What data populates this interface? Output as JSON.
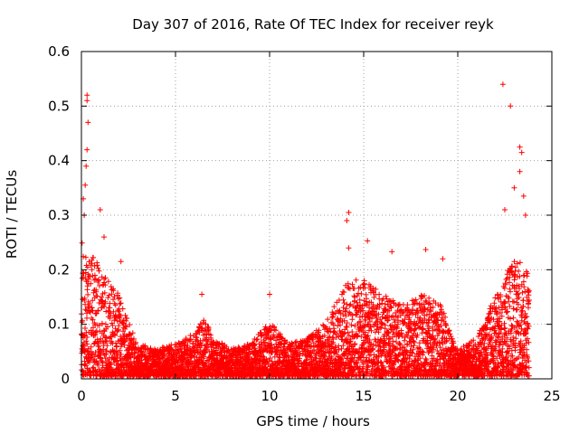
{
  "chart_data": {
    "type": "scatter",
    "title": "Day 307 of 2016, Rate Of TEC Index for receiver reyk",
    "xlabel": "GPS time / hours",
    "ylabel": "ROTI / TECUs",
    "xlim": [
      0,
      25
    ],
    "ylim": [
      0,
      0.6
    ],
    "xticks": [
      0,
      5,
      10,
      15,
      20,
      25
    ],
    "yticks": [
      0,
      0.1,
      0.2,
      0.3,
      0.4,
      0.5,
      0.6
    ],
    "xtick_labels": [
      "0",
      "5",
      "10",
      "15",
      "20",
      "25"
    ],
    "ytick_labels": [
      "0",
      "0.1",
      "0.2",
      "0.3",
      "0.4",
      "0.5",
      "0.6"
    ],
    "grid": true,
    "marker": "+",
    "series": [
      {
        "name": "ROTI",
        "color": "#ff0000",
        "data_range_hours": [
          0,
          23.8
        ],
        "notable_points": [
          {
            "x": 0.3,
            "y": 0.52
          },
          {
            "x": 0.3,
            "y": 0.51
          },
          {
            "x": 0.35,
            "y": 0.47
          },
          {
            "x": 0.3,
            "y": 0.42
          },
          {
            "x": 0.25,
            "y": 0.39
          },
          {
            "x": 0.2,
            "y": 0.355
          },
          {
            "x": 0.1,
            "y": 0.33
          },
          {
            "x": 0.15,
            "y": 0.3
          },
          {
            "x": 1.0,
            "y": 0.31
          },
          {
            "x": 1.2,
            "y": 0.26
          },
          {
            "x": 2.1,
            "y": 0.215
          },
          {
            "x": 6.4,
            "y": 0.155
          },
          {
            "x": 10.0,
            "y": 0.155
          },
          {
            "x": 14.2,
            "y": 0.305
          },
          {
            "x": 14.1,
            "y": 0.29
          },
          {
            "x": 14.2,
            "y": 0.24
          },
          {
            "x": 15.2,
            "y": 0.253
          },
          {
            "x": 16.5,
            "y": 0.233
          },
          {
            "x": 18.3,
            "y": 0.237
          },
          {
            "x": 19.2,
            "y": 0.22
          },
          {
            "x": 22.4,
            "y": 0.54
          },
          {
            "x": 22.8,
            "y": 0.5
          },
          {
            "x": 23.3,
            "y": 0.425
          },
          {
            "x": 23.4,
            "y": 0.415
          },
          {
            "x": 23.3,
            "y": 0.38
          },
          {
            "x": 23.5,
            "y": 0.335
          },
          {
            "x": 23.6,
            "y": 0.3
          },
          {
            "x": 23.0,
            "y": 0.35
          },
          {
            "x": 22.5,
            "y": 0.31
          }
        ],
        "envelope_typical_upper": [
          {
            "x": 0,
            "y": 0.25
          },
          {
            "x": 0.5,
            "y": 0.23
          },
          {
            "x": 1.0,
            "y": 0.2
          },
          {
            "x": 1.5,
            "y": 0.17
          },
          {
            "x": 2.0,
            "y": 0.15
          },
          {
            "x": 2.5,
            "y": 0.1
          },
          {
            "x": 3.0,
            "y": 0.06
          },
          {
            "x": 4.0,
            "y": 0.05
          },
          {
            "x": 5.0,
            "y": 0.06
          },
          {
            "x": 6.0,
            "y": 0.08
          },
          {
            "x": 6.5,
            "y": 0.11
          },
          {
            "x": 7.0,
            "y": 0.07
          },
          {
            "x": 8.0,
            "y": 0.05
          },
          {
            "x": 9.0,
            "y": 0.06
          },
          {
            "x": 10.0,
            "y": 0.1
          },
          {
            "x": 11.0,
            "y": 0.06
          },
          {
            "x": 12.0,
            "y": 0.07
          },
          {
            "x": 13.0,
            "y": 0.1
          },
          {
            "x": 14.0,
            "y": 0.17
          },
          {
            "x": 15.0,
            "y": 0.18
          },
          {
            "x": 16.0,
            "y": 0.15
          },
          {
            "x": 17.0,
            "y": 0.13
          },
          {
            "x": 18.0,
            "y": 0.15
          },
          {
            "x": 19.0,
            "y": 0.14
          },
          {
            "x": 19.7,
            "y": 0.08
          },
          {
            "x": 20.0,
            "y": 0.05
          },
          {
            "x": 21.0,
            "y": 0.07
          },
          {
            "x": 22.0,
            "y": 0.15
          },
          {
            "x": 23.0,
            "y": 0.22
          },
          {
            "x": 23.8,
            "y": 0.2
          }
        ]
      }
    ]
  }
}
